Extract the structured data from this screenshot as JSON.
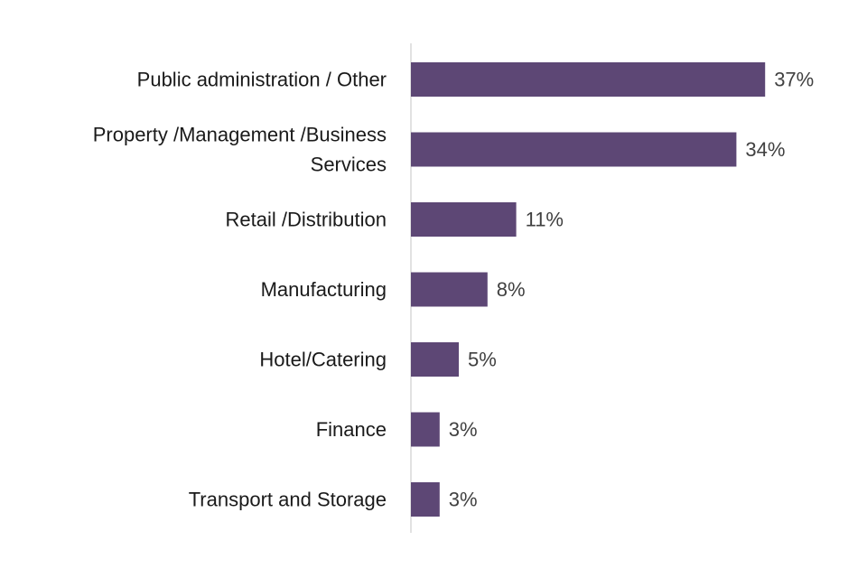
{
  "chart_data": {
    "type": "bar",
    "orientation": "horizontal",
    "categories": [
      "Public administration / Other",
      "Property /Management /Business Services",
      "Retail /Distribution",
      "Manufacturing",
      "Hotel/Catering",
      "Finance",
      "Transport and Storage"
    ],
    "category_lines": [
      [
        "Public administration / Other"
      ],
      [
        "Property /Management /Business",
        "Services"
      ],
      [
        "Retail /Distribution"
      ],
      [
        "Manufacturing"
      ],
      [
        "Hotel/Catering"
      ],
      [
        "Finance"
      ],
      [
        "Transport and Storage"
      ]
    ],
    "values": [
      37,
      34,
      11,
      8,
      5,
      3,
      3
    ],
    "value_labels": [
      "37%",
      "34%",
      "11%",
      "8%",
      "5%",
      "3%",
      "3%"
    ],
    "unit": "%",
    "xlim": [
      0,
      40
    ],
    "grid": false,
    "legend": "none",
    "title": "",
    "xlabel": "",
    "ylabel": "",
    "bar_color": "#5d4775",
    "axis_color": "#d9d9d9"
  }
}
